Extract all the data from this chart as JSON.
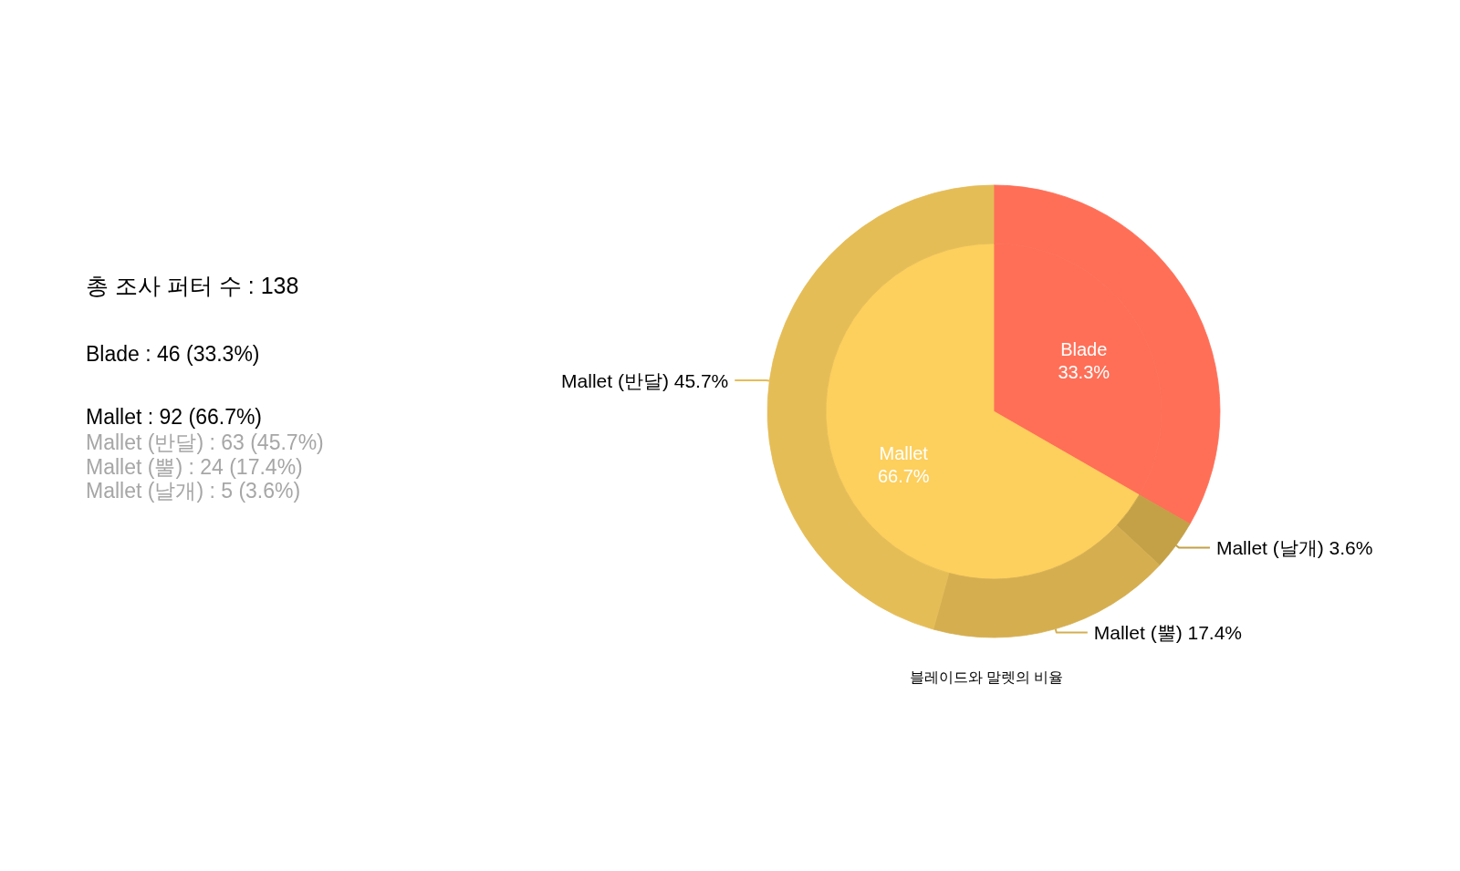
{
  "chart_data": [
    {
      "type": "other",
      "title": "총 조사 퍼터 수 : 138",
      "annotations": [
        "Blade : 46 (33.3%)"
      ]
    },
    {
      "type": "other",
      "title": "Mallet : 92 (66.7%)",
      "annotations": [
        "Mallet (반달) : 63 (45.7%)",
        "Mallet (뿔) : 24 (17.4%)",
        "Mallet (날개) : 5 (3.6%)"
      ],
      "color": "#a6a6a6"
    },
    {
      "type": "pie",
      "categories": [
        "Blade",
        "Mallet"
      ],
      "values": [
        33.3,
        66.7
      ],
      "colors": [
        "#ff6f57",
        "#fdcf5d"
      ],
      "value_labels": [
        "33.3%",
        "66.7%"
      ]
    },
    {
      "type": "donut",
      "title": "블레이드와 말렛의 비율",
      "categories": [
        null,
        "Mallet (날개)",
        "Mallet (뿔)",
        "Mallet (반달)"
      ],
      "values": [
        33.3,
        3.6,
        17.4,
        45.7
      ],
      "colors": [
        "#ff6f57",
        "#c4a047",
        "#d5ae50",
        "#e5bd57"
      ],
      "value_labels": [
        null,
        "3.6%",
        "17.4%",
        "45.7%"
      ]
    }
  ]
}
